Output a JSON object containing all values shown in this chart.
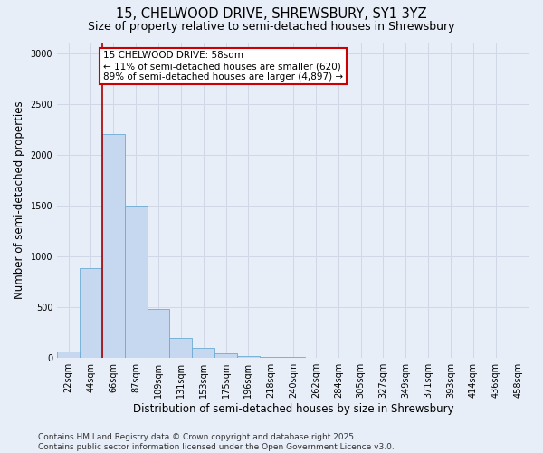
{
  "title1": "15, CHELWOOD DRIVE, SHREWSBURY, SY1 3YZ",
  "title2": "Size of property relative to semi-detached houses in Shrewsbury",
  "xlabel": "Distribution of semi-detached houses by size in Shrewsbury",
  "ylabel": "Number of semi-detached properties",
  "categories": [
    "22sqm",
    "44sqm",
    "66sqm",
    "87sqm",
    "109sqm",
    "131sqm",
    "153sqm",
    "175sqm",
    "196sqm",
    "218sqm",
    "240sqm",
    "262sqm",
    "284sqm",
    "305sqm",
    "327sqm",
    "349sqm",
    "371sqm",
    "393sqm",
    "414sqm",
    "436sqm",
    "458sqm"
  ],
  "values": [
    60,
    880,
    2200,
    1500,
    480,
    195,
    100,
    40,
    15,
    8,
    3,
    1,
    1,
    0,
    0,
    0,
    0,
    0,
    0,
    0,
    0
  ],
  "bar_color": "#c5d8ef",
  "bar_edge_color": "#6aaad4",
  "annotation_text": "15 CHELWOOD DRIVE: 58sqm\n← 11% of semi-detached houses are smaller (620)\n89% of semi-detached houses are larger (4,897) →",
  "annotation_box_color": "#ffffff",
  "annotation_box_edge_color": "#cc0000",
  "vline_color": "#aa0000",
  "vline_x": 1.5,
  "ylim": [
    0,
    3100
  ],
  "yticks": [
    0,
    500,
    1000,
    1500,
    2000,
    2500,
    3000
  ],
  "grid_color": "#d0d8e8",
  "background_color": "#e8eef8",
  "footer1": "Contains HM Land Registry data © Crown copyright and database right 2025.",
  "footer2": "Contains public sector information licensed under the Open Government Licence v3.0.",
  "title_fontsize": 10.5,
  "subtitle_fontsize": 9,
  "axis_label_fontsize": 8.5,
  "tick_fontsize": 7,
  "footer_fontsize": 6.5,
  "annot_fontsize": 7.5
}
